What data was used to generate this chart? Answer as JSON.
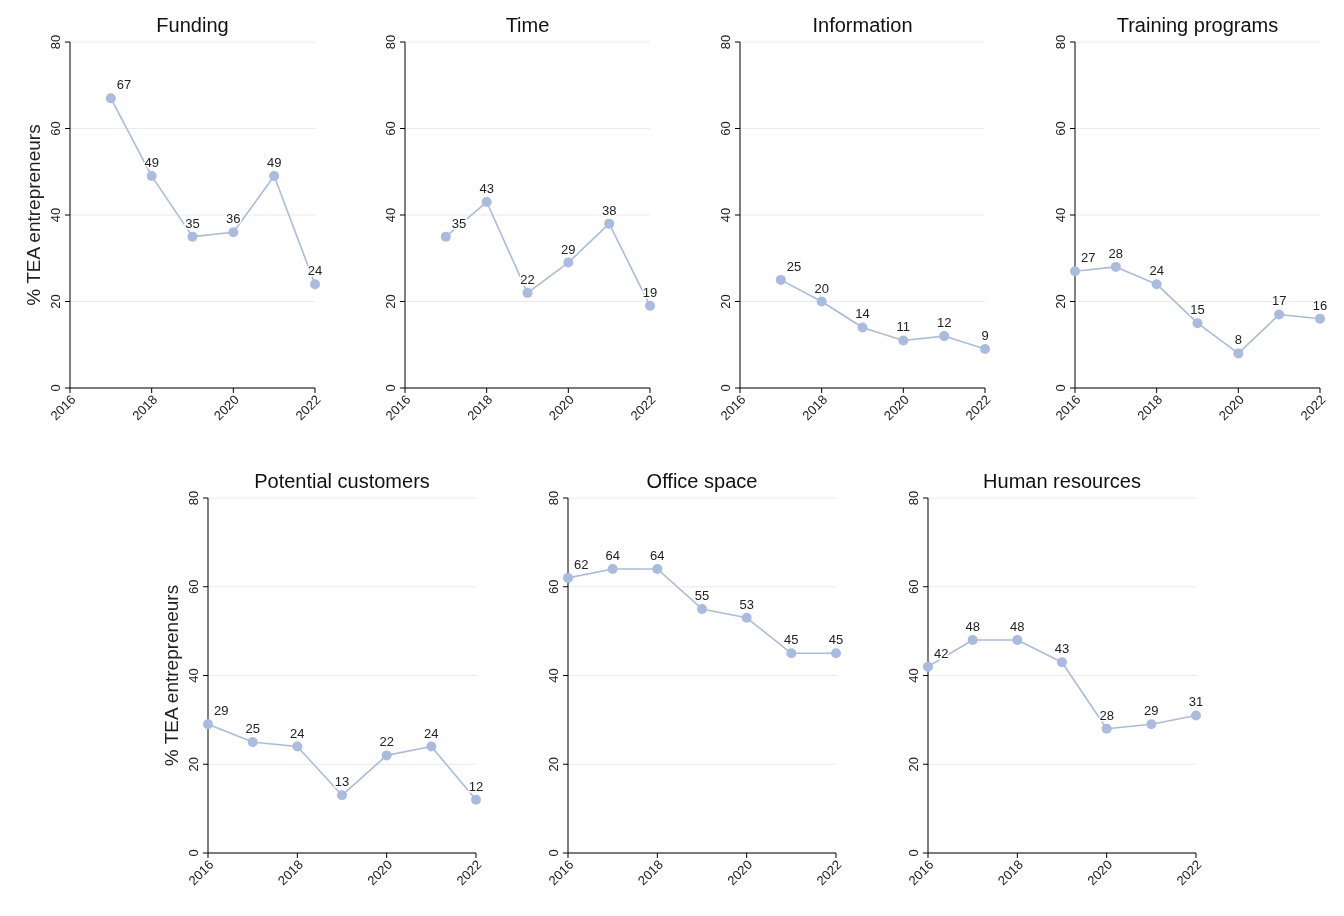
{
  "chart_data": [
    {
      "type": "line",
      "title": "Funding",
      "ylabel": "% TEA entrepreneurs",
      "x": [
        2017,
        2018,
        2019,
        2020,
        2021,
        2022
      ],
      "values": [
        67,
        49,
        35,
        36,
        49,
        24
      ],
      "color": "#a9bcdf",
      "xlim": [
        2016,
        2022
      ],
      "xticks": [
        2016,
        2018,
        2020,
        2022
      ],
      "ylim": [
        0,
        80
      ],
      "yticks": [
        0,
        20,
        40,
        60,
        80
      ],
      "grid": "y",
      "marker": "circle",
      "data_labels": true
    },
    {
      "type": "line",
      "title": "Time",
      "x": [
        2017,
        2018,
        2019,
        2020,
        2021,
        2022
      ],
      "values": [
        35,
        43,
        22,
        29,
        38,
        19
      ],
      "color": "#a9bcdf",
      "xlim": [
        2016,
        2022
      ],
      "xticks": [
        2016,
        2018,
        2020,
        2022
      ],
      "ylim": [
        0,
        80
      ],
      "yticks": [
        0,
        20,
        40,
        60,
        80
      ],
      "grid": "y",
      "marker": "circle",
      "data_labels": true
    },
    {
      "type": "line",
      "title": "Information",
      "x": [
        2017,
        2018,
        2019,
        2020,
        2021,
        2022
      ],
      "values": [
        25,
        20,
        14,
        11,
        12,
        9
      ],
      "color": "#a9bcdf",
      "xlim": [
        2016,
        2022
      ],
      "xticks": [
        2016,
        2018,
        2020,
        2022
      ],
      "ylim": [
        0,
        80
      ],
      "yticks": [
        0,
        20,
        40,
        60,
        80
      ],
      "grid": "y",
      "marker": "circle",
      "data_labels": true
    },
    {
      "type": "line",
      "title": "Training programs",
      "x": [
        2016,
        2017,
        2018,
        2019,
        2020,
        2021,
        2022
      ],
      "values": [
        27,
        28,
        24,
        15,
        8,
        17,
        16
      ],
      "color": "#a9bcdf",
      "xlim": [
        2016,
        2022
      ],
      "xticks": [
        2016,
        2018,
        2020,
        2022
      ],
      "ylim": [
        0,
        80
      ],
      "yticks": [
        0,
        20,
        40,
        60,
        80
      ],
      "grid": "y",
      "marker": "circle",
      "data_labels": true
    },
    {
      "type": "line",
      "title": "Potential customers",
      "ylabel": "% TEA entrepreneurs",
      "x": [
        2016,
        2017,
        2018,
        2019,
        2020,
        2021,
        2022
      ],
      "values": [
        29,
        25,
        24,
        13,
        22,
        24,
        12
      ],
      "color": "#a9bcdf",
      "xlim": [
        2016,
        2022
      ],
      "xticks": [
        2016,
        2018,
        2020,
        2022
      ],
      "ylim": [
        0,
        80
      ],
      "yticks": [
        0,
        20,
        40,
        60,
        80
      ],
      "grid": "y",
      "marker": "circle",
      "data_labels": true
    },
    {
      "type": "line",
      "title": "Office space",
      "x": [
        2016,
        2017,
        2018,
        2019,
        2020,
        2021,
        2022
      ],
      "values": [
        62,
        64,
        64,
        55,
        53,
        45,
        45
      ],
      "color": "#a9bcdf",
      "xlim": [
        2016,
        2022
      ],
      "xticks": [
        2016,
        2018,
        2020,
        2022
      ],
      "ylim": [
        0,
        80
      ],
      "yticks": [
        0,
        20,
        40,
        60,
        80
      ],
      "grid": "y",
      "marker": "circle",
      "data_labels": true
    },
    {
      "type": "line",
      "title": "Human resources",
      "x": [
        2016,
        2017,
        2018,
        2019,
        2020,
        2021,
        2022
      ],
      "values": [
        42,
        48,
        48,
        43,
        28,
        29,
        31
      ],
      "color": "#a9bcdf",
      "xlim": [
        2016,
        2022
      ],
      "xticks": [
        2016,
        2018,
        2020,
        2022
      ],
      "ylim": [
        0,
        80
      ],
      "yticks": [
        0,
        20,
        40,
        60,
        80
      ],
      "grid": "y",
      "marker": "circle",
      "data_labels": true
    }
  ]
}
